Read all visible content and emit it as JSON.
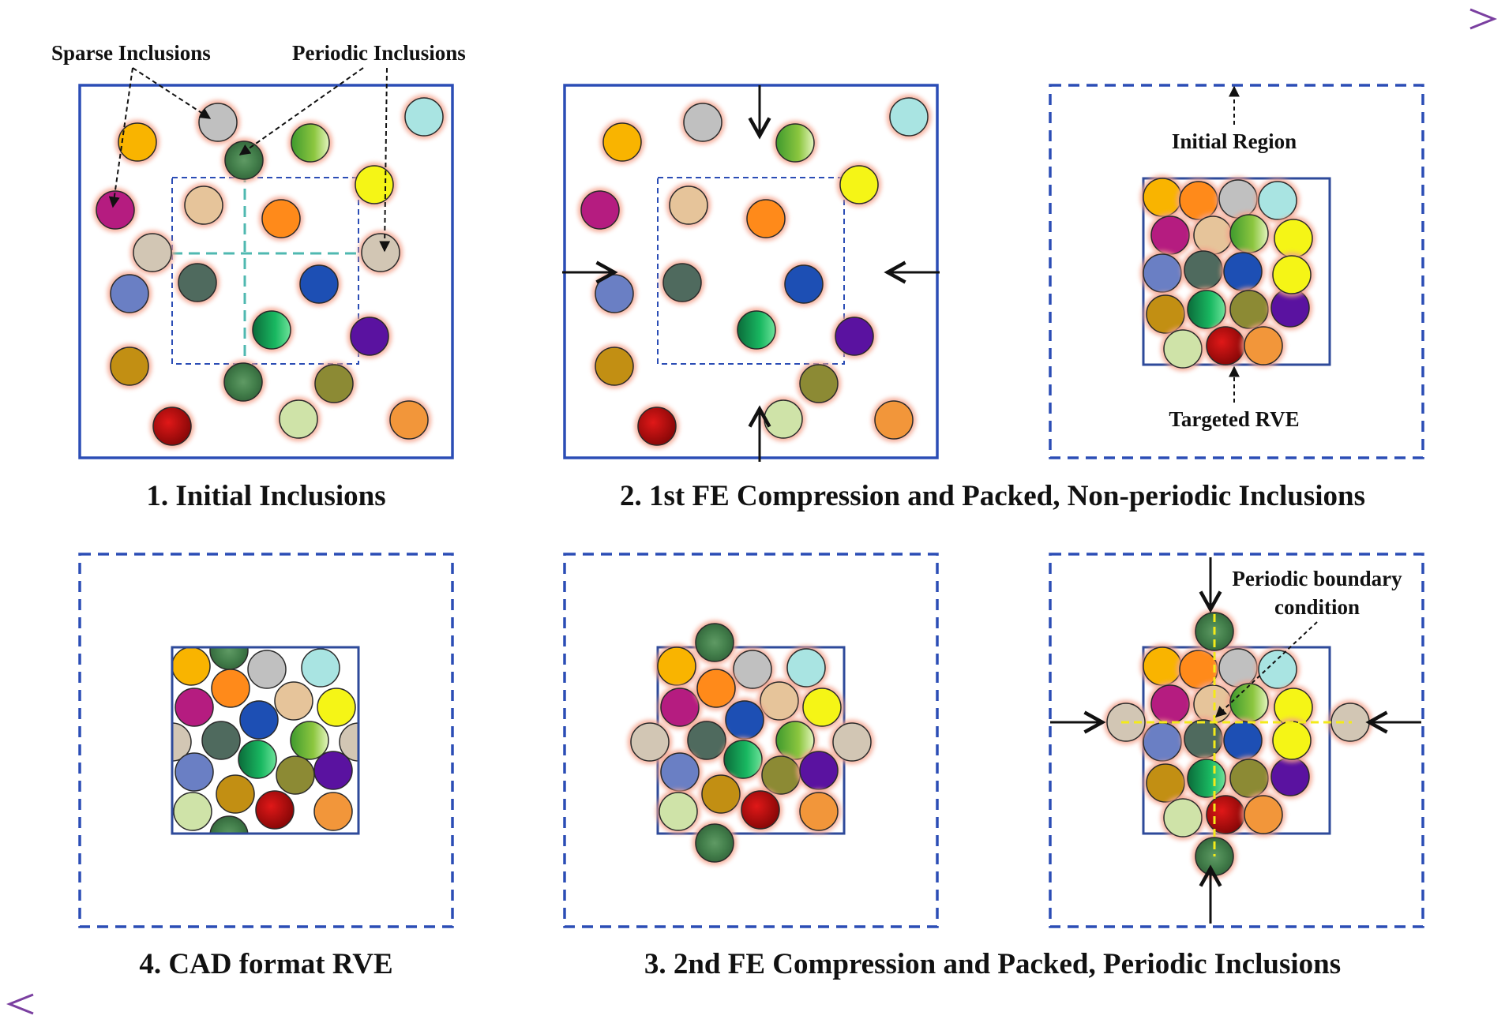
{
  "captions": {
    "step1": "1. Initial Inclusions",
    "step2": "2. 1st FE Compression and Packed, Non-periodic Inclusions",
    "step3": "3. 2nd FE Compression and Packed, Periodic Inclusions",
    "step4": "4. CAD format RVE"
  },
  "annotations": {
    "sparse": "Sparse Inclusions",
    "periodic": "Periodic Inclusions",
    "initial_region": "Initial Region",
    "targeted_rve": "Targeted RVE",
    "pbc_line1": "Periodic boundary",
    "pbc_line2": "condition"
  },
  "colors": {
    "frame": "#2b4db5",
    "rve_frame": "#2e4a9a",
    "arrow": "#111111",
    "glow": "#f4a38c",
    "cyan_dash": "#4fb8b0",
    "yellow_dash": "#f3ea1a",
    "palette": {
      "orange_yellow": "#f9b400",
      "silver": "#c0c0c0",
      "lime": "#8cc63f",
      "aqua": "#a9e4e2",
      "magenta": "#b51c80",
      "tan": "#e6c49a",
      "orange": "#ff8a1a",
      "yellow": "#f5f516",
      "taupe": "#d2c6b4",
      "slate_blue": "#6a7fc4",
      "dark_gray": "#4f6a5e",
      "royal_blue": "#1d4fb4",
      "emerald": "#13a85a",
      "purple": "#5a12a0",
      "ochre": "#c28f13",
      "olive": "#8c8a34",
      "red": "#c50a0a",
      "pale_green": "#cfe3a8",
      "light_orange": "#f2963a",
      "marble_green": "#4b8550"
    }
  }
}
